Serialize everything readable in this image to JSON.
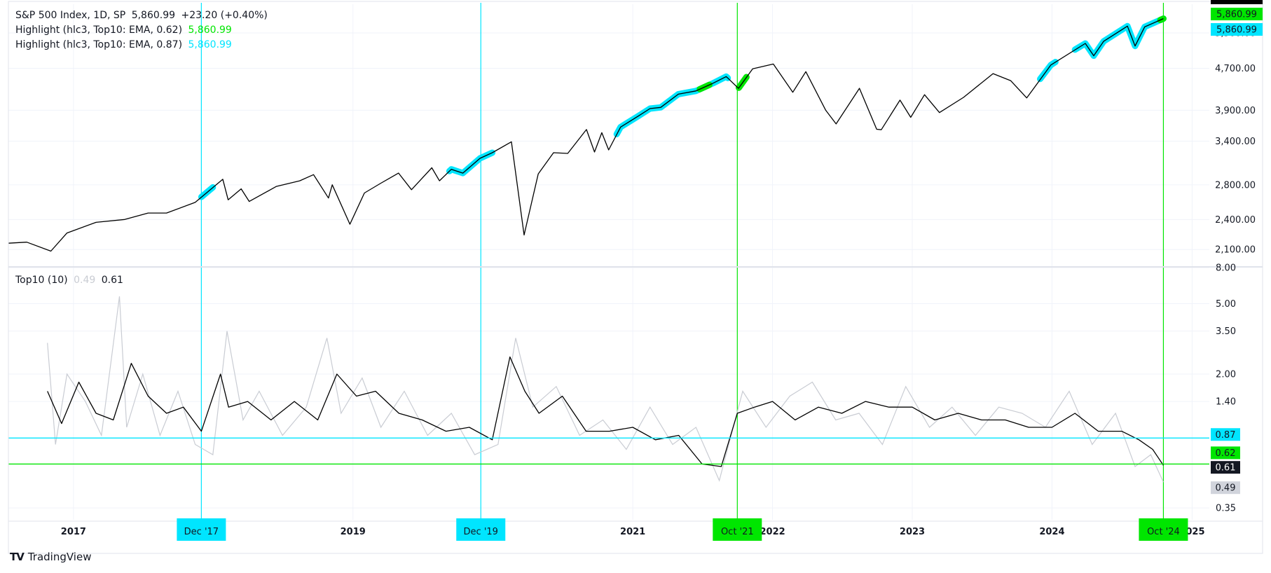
{
  "legend": {
    "main": {
      "symbol": "S&P 500 Index, 1D, SP",
      "price": "5,860.99",
      "change": "+23.20 (+0.40%)"
    },
    "highlight1": {
      "label": "Highlight (hlc3, Top10: EMA, 0.62)",
      "value": "5,860.99"
    },
    "highlight2": {
      "label": "Highlight (hlc3, Top10: EMA, 0.87)",
      "value": "5,860.99"
    },
    "lower": {
      "label": "Top10 (10)",
      "v1": "0.49",
      "v2": "0.61"
    }
  },
  "footer": {
    "brand": "TradingView",
    "logo": "TV"
  },
  "colors": {
    "price": "#000000",
    "green": "#00e600",
    "cyan": "#00e5ff",
    "grey": "#c9ccd3",
    "grid": "#f0f3fa"
  },
  "chart_data": [
    {
      "type": "line",
      "title": "S&P 500 Index, 1D, SP",
      "scale": "log",
      "ylim": [
        1950,
        6250
      ],
      "yticks": [
        "2,100.00",
        "2,400.00",
        "2,800.00",
        "3,400.00",
        "3,900.00",
        "4,700.00",
        "5,500.00"
      ],
      "ytick_values": [
        2100,
        2400,
        2800,
        3400,
        3900,
        4700,
        5500
      ],
      "price_labels": [
        {
          "text": "5,860.99",
          "color": "green"
        },
        {
          "text": "5,860.99",
          "color": "cyan"
        }
      ],
      "series": [
        {
          "name": "S&P 500 Index",
          "x": [
            "2016-07-15",
            "2016-09-01",
            "2016-11-03",
            "2016-12-15",
            "2017-03-01",
            "2017-05-15",
            "2017-07-15",
            "2017-09-01",
            "2017-11-15",
            "2018-01-26",
            "2018-02-09",
            "2018-03-15",
            "2018-04-05",
            "2018-06-15",
            "2018-08-15",
            "2018-09-20",
            "2018-10-29",
            "2018-11-08",
            "2018-12-24",
            "2019-01-31",
            "2019-03-15",
            "2019-04-30",
            "2019-06-03",
            "2019-07-26",
            "2019-08-15",
            "2019-09-15",
            "2019-10-15",
            "2019-11-29",
            "2019-12-31",
            "2020-02-19",
            "2020-03-23",
            "2020-04-29",
            "2020-06-08",
            "2020-07-15",
            "2020-09-02",
            "2020-09-23",
            "2020-10-12",
            "2020-10-30",
            "2020-11-30",
            "2021-01-15",
            "2021-02-15",
            "2021-03-15",
            "2021-04-30",
            "2021-06-15",
            "2021-07-30",
            "2021-09-02",
            "2021-10-04",
            "2021-11-10",
            "2022-01-03",
            "2022-02-23",
            "2022-03-29",
            "2022-05-20",
            "2022-06-16",
            "2022-08-16",
            "2022-09-30",
            "2022-10-12",
            "2022-11-30",
            "2022-12-28",
            "2023-02-02",
            "2023-03-13",
            "2023-05-15",
            "2023-07-31",
            "2023-09-15",
            "2023-10-27",
            "2023-12-29",
            "2024-03-28",
            "2024-04-19",
            "2024-05-15",
            "2024-07-16",
            "2024-08-05",
            "2024-08-30",
            "2024-10-18"
          ],
          "values": [
            2160,
            2170,
            2085,
            2260,
            2370,
            2400,
            2470,
            2470,
            2590,
            2870,
            2620,
            2750,
            2600,
            2780,
            2850,
            2930,
            2640,
            2800,
            2350,
            2700,
            2820,
            2950,
            2740,
            3020,
            2850,
            3000,
            2950,
            3150,
            3230,
            3390,
            2240,
            2940,
            3230,
            3220,
            3580,
            3240,
            3530,
            3270,
            3620,
            3800,
            3930,
            3950,
            4190,
            4250,
            4400,
            4530,
            4300,
            4690,
            4790,
            4225,
            4630,
            3900,
            3670,
            4300,
            3585,
            3577,
            4080,
            3780,
            4180,
            3860,
            4130,
            4590,
            4450,
            4120,
            4770,
            5250,
            4970,
            5300,
            5670,
            5190,
            5650,
            5860.99
          ]
        }
      ],
      "highlights": [
        {
          "color": "cyan",
          "ranges": [
            [
              "2017-12-01",
              "2017-12-31"
            ],
            [
              "2019-09-10",
              "2019-12-31"
            ],
            [
              "2020-11-20",
              "2021-09-06"
            ],
            [
              "2023-12-01",
              "2024-01-10"
            ],
            [
              "2024-03-01",
              "2024-10-18"
            ]
          ]
        },
        {
          "color": "green",
          "ranges": [
            [
              "2021-06-25",
              "2021-07-20"
            ],
            [
              "2021-10-05",
              "2021-10-25"
            ],
            [
              "2024-10-10",
              "2024-10-18"
            ]
          ]
        }
      ]
    },
    {
      "type": "line",
      "title": "Top10 (10)",
      "scale": "log",
      "ylim": [
        0.3,
        8.0
      ],
      "yticks": [
        "8.00",
        "5.00",
        "3.50",
        "2.00",
        "1.40",
        "0.35"
      ],
      "ytick_values": [
        8.0,
        5.0,
        3.5,
        2.0,
        1.4,
        0.35
      ],
      "thresholds": [
        {
          "value": 0.87,
          "label": "0.87",
          "color": "cyan"
        },
        {
          "value": 0.62,
          "label": "0.62",
          "color": "green"
        }
      ],
      "last_labels": [
        {
          "text": "0.61",
          "color": "black"
        },
        {
          "text": "0.49",
          "color": "grey"
        }
      ],
      "series": [
        {
          "name": "Top10",
          "x": [
            "2016-10-25",
            "2016-12-01",
            "2017-01-15",
            "2017-03-01",
            "2017-04-15",
            "2017-06-01",
            "2017-07-15",
            "2017-09-01",
            "2017-10-15",
            "2017-12-01",
            "2018-01-20",
            "2018-02-10",
            "2018-04-01",
            "2018-06-01",
            "2018-08-01",
            "2018-10-01",
            "2018-11-20",
            "2019-01-10",
            "2019-03-01",
            "2019-05-01",
            "2019-07-01",
            "2019-09-01",
            "2019-11-01",
            "2019-12-31",
            "2020-02-15",
            "2020-03-25",
            "2020-05-01",
            "2020-07-01",
            "2020-09-01",
            "2020-11-01",
            "2021-01-01",
            "2021-03-01",
            "2021-05-01",
            "2021-07-01",
            "2021-08-20",
            "2021-10-01",
            "2021-11-15",
            "2022-01-01",
            "2022-03-01",
            "2022-05-01",
            "2022-07-01",
            "2022-09-01",
            "2022-11-01",
            "2023-01-01",
            "2023-03-01",
            "2023-05-01",
            "2023-07-01",
            "2023-09-01",
            "2023-11-01",
            "2024-01-01",
            "2024-03-01",
            "2024-05-01",
            "2024-07-01",
            "2024-08-15",
            "2024-09-20",
            "2024-10-18"
          ],
          "values": [
            1.6,
            1.05,
            1.8,
            1.2,
            1.1,
            2.3,
            1.5,
            1.2,
            1.3,
            0.95,
            2.0,
            1.3,
            1.4,
            1.1,
            1.4,
            1.1,
            2.0,
            1.5,
            1.6,
            1.2,
            1.1,
            0.95,
            1.0,
            0.85,
            2.5,
            1.6,
            1.2,
            1.5,
            0.95,
            0.95,
            1.0,
            0.85,
            0.9,
            0.62,
            0.6,
            1.2,
            1.3,
            1.4,
            1.1,
            1.3,
            1.2,
            1.4,
            1.3,
            1.3,
            1.1,
            1.2,
            1.1,
            1.1,
            1.0,
            1.0,
            1.2,
            0.95,
            0.95,
            0.85,
            0.75,
            0.61
          ]
        },
        {
          "name": "Top10 raw",
          "x": [
            "2016-10-25",
            "2016-11-15",
            "2016-12-15",
            "2017-02-01",
            "2017-03-15",
            "2017-05-01",
            "2017-05-20",
            "2017-07-01",
            "2017-08-15",
            "2017-10-01",
            "2017-11-15",
            "2017-12-31",
            "2018-02-06",
            "2018-03-20",
            "2018-05-01",
            "2018-07-01",
            "2018-09-01",
            "2018-10-25",
            "2018-12-01",
            "2019-01-25",
            "2019-03-15",
            "2019-05-15",
            "2019-07-15",
            "2019-09-15",
            "2019-11-15",
            "2020-01-15",
            "2020-03-01",
            "2020-04-15",
            "2020-06-15",
            "2020-08-15",
            "2020-10-15",
            "2020-12-15",
            "2021-02-15",
            "2021-04-15",
            "2021-06-15",
            "2021-08-15",
            "2021-10-15",
            "2021-12-15",
            "2022-02-15",
            "2022-04-15",
            "2022-06-15",
            "2022-08-15",
            "2022-10-15",
            "2022-12-15",
            "2023-02-15",
            "2023-04-15",
            "2023-06-15",
            "2023-08-15",
            "2023-10-15",
            "2023-12-15",
            "2024-02-15",
            "2024-04-15",
            "2024-06-15",
            "2024-08-05",
            "2024-09-15",
            "2024-10-18"
          ],
          "values": [
            3.0,
            0.8,
            2.0,
            1.4,
            0.9,
            5.5,
            1.0,
            2.0,
            0.9,
            1.6,
            0.8,
            0.7,
            3.5,
            1.1,
            1.6,
            0.9,
            1.3,
            3.2,
            1.2,
            1.9,
            1.0,
            1.6,
            0.9,
            1.2,
            0.7,
            0.8,
            3.2,
            1.3,
            1.7,
            0.9,
            1.1,
            0.75,
            1.3,
            0.8,
            1.0,
            0.5,
            1.6,
            1.0,
            1.5,
            1.8,
            1.1,
            1.2,
            0.8,
            1.7,
            1.0,
            1.3,
            0.9,
            1.3,
            1.2,
            1.0,
            1.6,
            0.8,
            1.2,
            0.6,
            0.7,
            0.49
          ]
        }
      ]
    }
  ],
  "xaxis": {
    "ticks": [
      {
        "date": "2017-01-01",
        "label": "2017"
      },
      {
        "date": "2019-01-01",
        "label": "2019"
      },
      {
        "date": "2021-01-01",
        "label": "2021"
      },
      {
        "date": "2022-01-01",
        "label": "2022"
      },
      {
        "date": "2023-01-01",
        "label": "2023"
      },
      {
        "date": "2024-01-01",
        "label": "2024"
      },
      {
        "date": "2025-01-01",
        "label": "2025"
      }
    ],
    "markers": [
      {
        "date": "2017-12-01",
        "label": "Dec '17",
        "color": "cyan"
      },
      {
        "date": "2019-12-01",
        "label": "Dec '19",
        "color": "cyan"
      },
      {
        "date": "2021-10-01",
        "label": "Oct '21",
        "color": "green"
      },
      {
        "date": "2024-10-18",
        "label": "Oct '24",
        "color": "green"
      }
    ]
  }
}
